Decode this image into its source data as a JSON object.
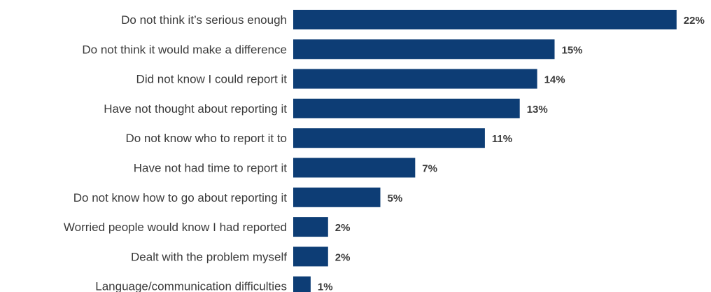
{
  "chart_data": {
    "type": "bar",
    "orientation": "horizontal",
    "categories": [
      "Do not think it’s serious enough",
      "Do not think it would make a difference",
      "Did not know I could report it",
      "Have not thought about reporting it",
      "Do not know who to report it to",
      "Have not had time to report it",
      "Do not know how to go about reporting it",
      "Worried people would know I had reported",
      "Dealt with the problem myself",
      "Language/communication difficulties"
    ],
    "values": [
      22,
      15,
      14,
      13,
      11,
      7,
      5,
      2,
      2,
      1
    ],
    "value_labels": [
      "22%",
      "15%",
      "14%",
      "13%",
      "11%",
      "7%",
      "5%",
      "2%",
      "2%",
      "1%"
    ],
    "value_unit": "%",
    "grid": false,
    "legend": "none",
    "colors": {
      "bar": "#0d3d75",
      "text": "#3a3a3a"
    }
  }
}
